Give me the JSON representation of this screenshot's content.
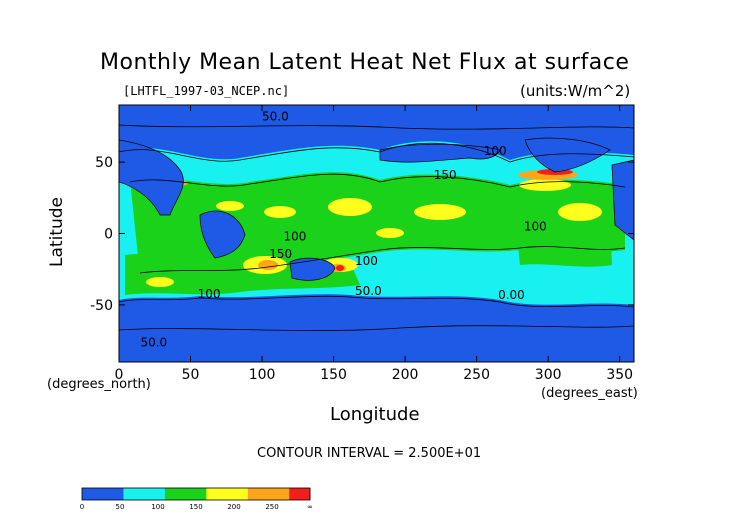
{
  "chart_data": {
    "type": "heatmap",
    "title": "Monthly Mean Latent Heat Net Flux at surface",
    "source_label": "[LHTFL_1997-03_NCEP.nc]",
    "units_label": "(units:W/m^2)",
    "xlabel": "Longitude",
    "ylabel": "Latitude",
    "x_units": "(degrees_east)",
    "y_units": "(degrees_north)",
    "xlim": [
      0,
      360
    ],
    "ylim": [
      -90,
      90
    ],
    "x_ticks": [
      0,
      50,
      100,
      150,
      200,
      250,
      300,
      350
    ],
    "y_ticks": [
      50,
      0,
      -50
    ],
    "contour_interval_text": "CONTOUR INTERVAL = 2.500E+01",
    "contour_labels": [
      "50.0",
      "100",
      "150",
      "100",
      "100",
      "150",
      "100",
      "50.0",
      "100",
      "0.00",
      "50.0"
    ],
    "levels": [
      0,
      50,
      100,
      150,
      200,
      250
    ],
    "colorbar_tick_labels": [
      "0",
      "50",
      "100",
      "150",
      "200",
      "250",
      "∞"
    ],
    "colorbar_colors": [
      "#1f5ae6",
      "#1f5ae6",
      "#19f0f0",
      "#19f0f0",
      "#19d219",
      "#19d219",
      "#ffff1e",
      "#ffff1e",
      "#ffa519",
      "#ffa519",
      "#f51e1e"
    ],
    "colors": {
      "band_0_50": "#1f5ae6",
      "band_50_100": "#19f0f0",
      "band_100_150": "#19d219",
      "band_150_200": "#ffff1e",
      "band_200_250": "#ffa519",
      "band_250_plus": "#f51e1e"
    },
    "grid": false,
    "legend": "colorbar-bottom-left"
  }
}
